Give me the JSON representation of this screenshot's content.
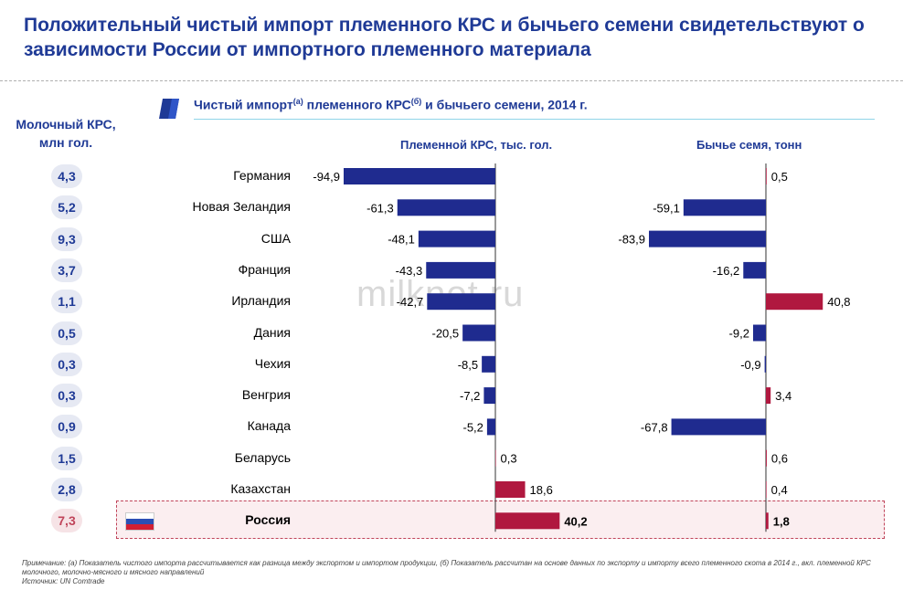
{
  "title": "Положительный чистый импорт племенного КРС и бычьего семени свидетельствуют о зависимости России от импортного племенного материала",
  "subtitle": {
    "part1": "Чистый импорт",
    "sup1": "(а)",
    "part2": " племенного КРС",
    "sup2": "(б)",
    "part3": " и бычьего семени, 2014 г."
  },
  "dairy_header": "Молочный КРС, млн гол.",
  "watermark": "milknot.ru",
  "footnote": {
    "note": "Примечание: (а) Показатель чистого импорта рассчитывается как разница между экспортом и импортом продукции, (б) Показатель рассчитан на основе данных по экспорту и импорту всего племенного скота в 2014 г., вкл. племенной КРС молочного, молочно-мясного и мясного направлений",
    "source": "Источник: UN Comtrade"
  },
  "colors": {
    "negative": "#1f2b8f",
    "positive": "#b0183f",
    "accent": "#1f3a96",
    "russia_highlight": "#fbeef0"
  },
  "chart_data": [
    {
      "type": "bar",
      "orientation": "horizontal",
      "title": "Племенной КРС, тыс. гол.",
      "categories": [
        "Германия",
        "Новая Зеландия",
        "США",
        "Франция",
        "Ирландия",
        "Дания",
        "Чехия",
        "Венгрия",
        "Канада",
        "Беларусь",
        "Казахстан",
        "Россия"
      ],
      "values": [
        -94.9,
        -61.3,
        -48.1,
        -43.3,
        -42.7,
        -20.5,
        -8.5,
        -7.2,
        -5.2,
        0.3,
        18.6,
        40.2
      ],
      "labels": [
        "-94,9",
        "-61,3",
        "-48,1",
        "-43,3",
        "-42,7",
        "-20,5",
        "-8,5",
        "-7,2",
        "-5,2",
        "0,3",
        "18,6",
        "40,2"
      ],
      "xlim": [
        -95,
        40.2
      ]
    },
    {
      "type": "bar",
      "orientation": "horizontal",
      "title": "Бычье семя, тонн",
      "categories": [
        "Германия",
        "Новая Зеландия",
        "США",
        "Франция",
        "Ирландия",
        "Дания",
        "Чехия",
        "Венгрия",
        "Канада",
        "Беларусь",
        "Казахстан",
        "Россия"
      ],
      "values": [
        0.5,
        -59.1,
        -83.9,
        -16.2,
        40.8,
        -9.2,
        -0.9,
        3.4,
        -67.8,
        0.6,
        0.4,
        1.8
      ],
      "labels": [
        "0,5",
        "-59,1",
        "-83,9",
        "-16,2",
        "40,8",
        "-9,2",
        "-0,9",
        "3,4",
        "-67,8",
        "0,6",
        "0,4",
        "1,8"
      ],
      "xlim": [
        -84,
        40.8
      ]
    }
  ],
  "dairy_cattle": {
    "header": "Молочный КРС, млн гол.",
    "values": [
      "4,3",
      "5,2",
      "9,3",
      "3,7",
      "1,1",
      "0,5",
      "0,3",
      "0,3",
      "0,9",
      "1,5",
      "2,8",
      "7,3"
    ]
  }
}
